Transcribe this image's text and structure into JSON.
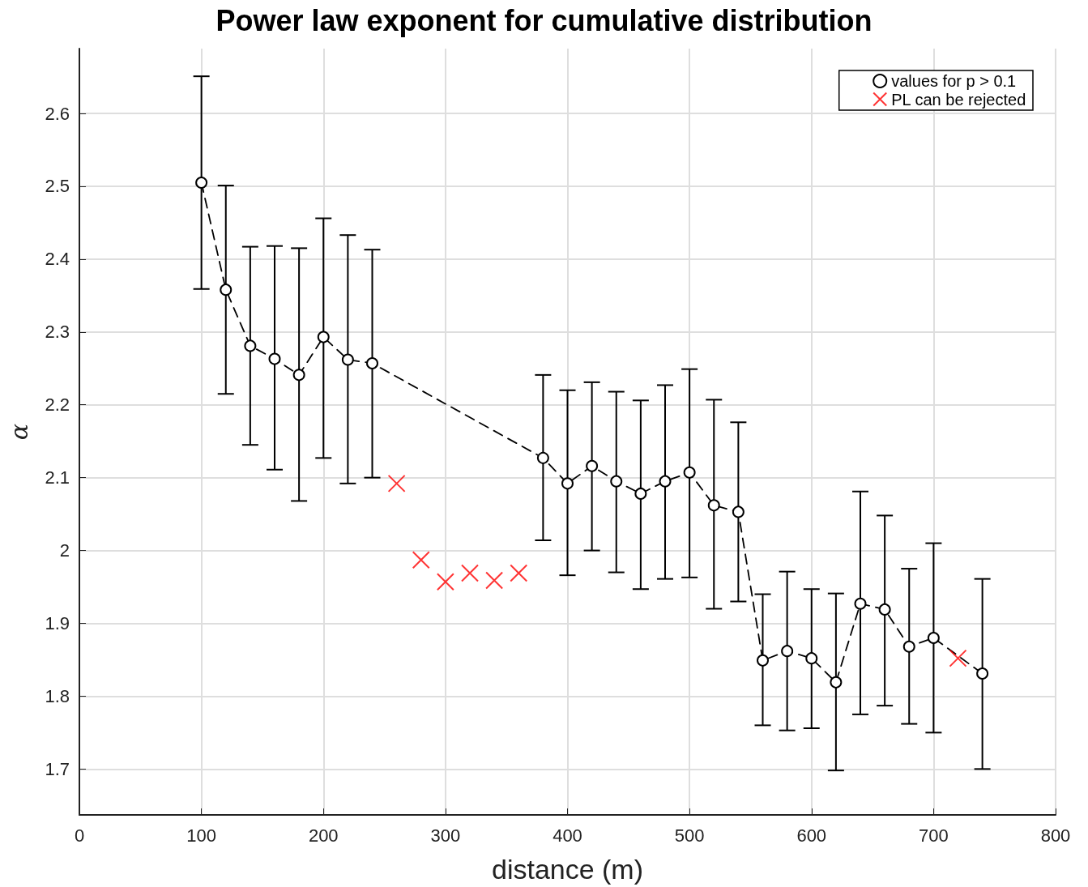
{
  "chart_data": {
    "type": "line",
    "title": "Power law exponent for cumulative distribution",
    "xlabel": "distance (m)",
    "ylabel": "α",
    "xlim": [
      0,
      800
    ],
    "xticks": [
      0,
      100,
      200,
      300,
      400,
      500,
      600,
      700,
      800
    ],
    "ylim": [
      1.637,
      2.689
    ],
    "yticks": [
      1.7,
      1.8,
      1.9,
      2,
      2.1,
      2.2,
      2.3,
      2.4,
      2.5,
      2.6
    ],
    "grid": true,
    "legend": "top right",
    "line_style": "dashed",
    "marker": "circle",
    "series": [
      {
        "name": "values for p > 0.1",
        "color": "#000000",
        "x": [
          100,
          120,
          140,
          160,
          180,
          200,
          220,
          240,
          380,
          400,
          420,
          440,
          460,
          480,
          500,
          520,
          540,
          560,
          580,
          600,
          620,
          640,
          660,
          680,
          700,
          740
        ],
        "values": [
          2.505,
          2.358,
          2.281,
          2.263,
          2.241,
          2.293,
          2.262,
          2.257,
          2.127,
          2.092,
          2.116,
          2.095,
          2.078,
          2.095,
          2.107,
          2.062,
          2.053,
          1.849,
          1.862,
          1.852,
          1.819,
          1.927,
          1.919,
          1.868,
          1.88,
          1.831
        ],
        "errors": [
          [
            2.359,
            2.651
          ],
          [
            2.215,
            2.501
          ],
          [
            2.145,
            2.417
          ],
          [
            2.111,
            2.418
          ],
          [
            2.068,
            2.415
          ],
          [
            2.127,
            2.456
          ],
          [
            2.092,
            2.433
          ],
          [
            2.1,
            2.413
          ],
          [
            2.014,
            2.241
          ],
          [
            1.966,
            2.22
          ],
          [
            2.0,
            2.231
          ],
          [
            1.97,
            2.218
          ],
          [
            1.947,
            2.206
          ],
          [
            1.961,
            2.227
          ],
          [
            1.963,
            2.249
          ],
          [
            1.92,
            2.207
          ],
          [
            1.93,
            2.176
          ],
          [
            1.76,
            1.94
          ],
          [
            1.753,
            1.971
          ],
          [
            1.756,
            1.947
          ],
          [
            1.698,
            1.941
          ],
          [
            1.775,
            2.081
          ],
          [
            1.787,
            2.048
          ],
          [
            1.762,
            1.975
          ],
          [
            1.75,
            2.01
          ],
          [
            1.7,
            1.961
          ]
        ]
      },
      {
        "name": "PL can be rejected",
        "color": "#ff0000",
        "type": "scatter",
        "marker": "cross",
        "x": [
          260,
          280,
          300,
          320,
          340,
          360,
          720
        ],
        "values": [
          2.092,
          1.987,
          1.957,
          1.969,
          1.959,
          1.969,
          1.852
        ]
      }
    ]
  }
}
